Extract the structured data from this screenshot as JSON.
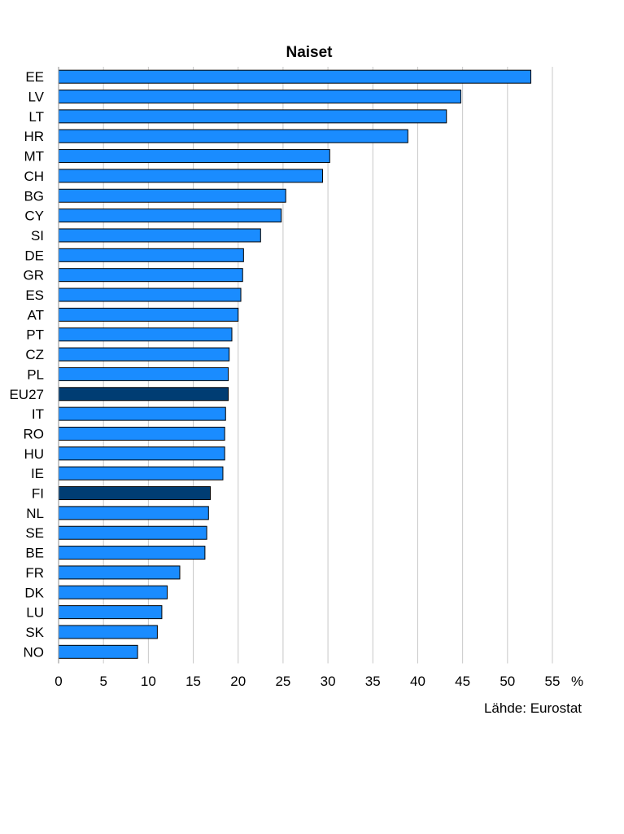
{
  "chart_data": {
    "type": "bar",
    "orientation": "horizontal",
    "title": "Naiset",
    "categories": [
      "EE",
      "LV",
      "LT",
      "HR",
      "MT",
      "CH",
      "BG",
      "CY",
      "SI",
      "DE",
      "GR",
      "ES",
      "AT",
      "PT",
      "CZ",
      "PL",
      "EU27",
      "IT",
      "RO",
      "HU",
      "IE",
      "FI",
      "NL",
      "SE",
      "BE",
      "FR",
      "DK",
      "LU",
      "SK",
      "NO"
    ],
    "values": [
      52.6,
      44.8,
      43.2,
      38.9,
      30.2,
      29.4,
      25.3,
      24.8,
      22.5,
      20.6,
      20.5,
      20.3,
      20.0,
      19.3,
      19.0,
      18.9,
      18.9,
      18.6,
      18.5,
      18.5,
      18.3,
      16.9,
      16.7,
      16.5,
      16.3,
      13.5,
      12.1,
      11.5,
      11.0,
      8.8
    ],
    "highlighted": [
      "EU27",
      "FI"
    ],
    "xlim": [
      0,
      55
    ],
    "xticks": [
      0,
      5,
      10,
      15,
      20,
      25,
      30,
      35,
      40,
      45,
      50,
      55
    ],
    "x_unit": "%",
    "grid": "vertical",
    "bar_color": "#1a8cff",
    "highlight_color": "#003d73",
    "source": "Lähde: Eurostat"
  }
}
